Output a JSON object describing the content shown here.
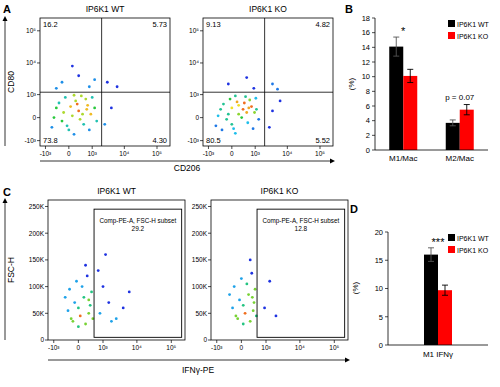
{
  "chart_data": [
    {
      "type": "scatter",
      "panel": "A",
      "x_label": "CD206",
      "y_label": "CD80",
      "xlim": [
        -1500,
        250000
      ],
      "ylim": [
        -1500,
        250000
      ],
      "xticks": [
        {
          "value": -1000,
          "label": "-10³"
        },
        0,
        {
          "value": 1000,
          "label": "10³"
        },
        {
          "value": 10000,
          "label": "10⁴"
        },
        {
          "value": 100000,
          "label": "10⁵"
        }
      ],
      "yticks": [
        {
          "value": -1000,
          "label": "-10³"
        },
        0,
        {
          "value": 1000,
          "label": "10³"
        },
        {
          "value": 10000,
          "label": "10⁴"
        },
        {
          "value": 100000,
          "label": "10⁵"
        }
      ],
      "quadrant_x": 2000,
      "quadrant_y": 1200,
      "plots": [
        {
          "title": "IP6K1 WT",
          "x": [
            -200,
            100,
            300,
            -400,
            500,
            200,
            700,
            -100,
            900,
            0,
            400,
            -600,
            1200,
            600,
            150,
            -300,
            800,
            1000,
            50,
            -500,
            350,
            250,
            -150,
            450,
            1400,
            -50,
            650,
            150,
            -200,
            300,
            800,
            100,
            -400,
            1200,
            3000,
            6000,
            4000,
            2500
          ],
          "y": [
            -100,
            50,
            200,
            300,
            -200,
            600,
            400,
            800,
            100,
            -400,
            900,
            -300,
            300,
            700,
            -600,
            500,
            -400,
            800,
            350,
            0,
            -50,
            450,
            150,
            100,
            -100,
            -250,
            250,
            950,
            2500,
            4000,
            1800,
            8000,
            1600,
            3000,
            2500,
            1800,
            300,
            -200
          ],
          "quadrants": {
            "values": [
              16.2,
              5.73,
              73.8,
              4.3
            ],
            "value_labels": [
              "16.2",
              "5.73",
              "73.8",
              "4.30"
            ]
          }
        },
        {
          "title": "IP6K1 KO",
          "x": [
            -150,
            200,
            350,
            -350,
            550,
            150,
            750,
            -50,
            950,
            50,
            450,
            -550,
            1100,
            650,
            100,
            -250,
            850,
            1050,
            0,
            -450,
            300,
            200,
            -100,
            500,
            1300,
            0,
            600,
            100,
            400,
            -300,
            -100,
            500,
            900,
            3500,
            5000,
            3500,
            2800,
            6000
          ],
          "y": [
            -50,
            100,
            250,
            250,
            -150,
            550,
            350,
            700,
            150,
            -350,
            850,
            -250,
            250,
            650,
            -550,
            450,
            -350,
            750,
            300,
            50,
            0,
            400,
            100,
            150,
            -50,
            -200,
            300,
            900,
            500,
            -400,
            2200,
            3500,
            1600,
            2200,
            1500,
            200,
            -300,
            600
          ],
          "quadrants": {
            "values": [
              9.13,
              4.82,
              80.5,
              5.52
            ],
            "value_labels": [
              "9.13",
              "4.82",
              "80.5",
              "5.52"
            ]
          }
        }
      ]
    },
    {
      "type": "bar",
      "panel": "B",
      "y_label": "(%)",
      "categories": [
        "M1/Mac",
        "M2/Mac"
      ],
      "ylim": [
        0,
        18
      ],
      "yticks": [
        0,
        2,
        4,
        6,
        8,
        10,
        12,
        14,
        16,
        18
      ],
      "legend": "upper right",
      "series": [
        {
          "name": "IP6K1 WT",
          "color": "#000000",
          "values": [
            14.1,
            3.7
          ],
          "errors": [
            1.3,
            0.4
          ]
        },
        {
          "name": "IP6K1 KO",
          "color": "#ff0000",
          "values": [
            10.1,
            5.5
          ],
          "errors": [
            0.9,
            0.7
          ]
        }
      ],
      "annotations": [
        {
          "text": "*",
          "category": "M1/Mac"
        },
        {
          "text": "p = 0.07",
          "category": "M2/Mac"
        }
      ]
    },
    {
      "type": "scatter",
      "panel": "C",
      "x_label": "IFNγ-PE",
      "y_label": "FSC-H",
      "xlim": [
        -1500,
        250000
      ],
      "ylim": [
        0,
        262144
      ],
      "xticks": [
        {
          "value": -1000,
          "label": "-10³"
        },
        0,
        {
          "value": 1000,
          "label": "10³"
        },
        {
          "value": 10000,
          "label": "10⁴"
        },
        {
          "value": 100000,
          "label": "10⁵"
        }
      ],
      "yticks": [
        0,
        {
          "value": 50000,
          "label": "50K"
        },
        {
          "value": 100000,
          "label": "100K"
        },
        {
          "value": 150000,
          "label": "150K"
        },
        {
          "value": 200000,
          "label": "200K"
        },
        {
          "value": 250000,
          "label": "250K"
        }
      ],
      "plots": [
        {
          "title": "IP6K1 WT",
          "x": [
            -200,
            0,
            200,
            -400,
            300,
            100,
            -100,
            400,
            -300,
            250,
            50,
            -150,
            350,
            150,
            -50,
            450,
            -250,
            200,
            0,
            300,
            800,
            1500,
            2500,
            1000,
            4000,
            700,
            1800,
            6000,
            1200
          ],
          "y": [
            40000,
            60000,
            30000,
            80000,
            50000,
            100000,
            70000,
            90000,
            55000,
            120000,
            45000,
            35000,
            65000,
            80000,
            110000,
            40000,
            95000,
            140000,
            25000,
            75000,
            50000,
            70000,
            40000,
            100000,
            60000,
            130000,
            35000,
            90000,
            160000
          ],
          "gate": {
            "label": "Comp-PE-A, FSC-H subset",
            "value": 29.2,
            "x": [
              500,
              200000
            ],
            "y": [
              5000,
              245000
            ]
          }
        },
        {
          "title": "IP6K1 KO",
          "x": [
            -150,
            50,
            250,
            -350,
            350,
            150,
            -50,
            420,
            -250,
            300,
            100,
            -100,
            380,
            200,
            0,
            470,
            -200,
            250,
            50,
            320,
            900,
            2000,
            1300
          ],
          "y": [
            45000,
            65000,
            35000,
            85000,
            55000,
            105000,
            75000,
            95000,
            60000,
            125000,
            50000,
            40000,
            70000,
            85000,
            115000,
            45000,
            100000,
            150000,
            30000,
            80000,
            60000,
            45000,
            110000
          ],
          "gate": {
            "label": "Comp-PE-A, FSC-H subset",
            "value": 12.8,
            "x": [
              500,
              200000
            ],
            "y": [
              5000,
              245000
            ]
          }
        }
      ]
    },
    {
      "type": "bar",
      "panel": "D",
      "y_label": "(%)",
      "categories": [
        "M1 IFNγ"
      ],
      "ylim": [
        0,
        20
      ],
      "yticks": [
        0,
        5,
        10,
        15,
        20
      ],
      "legend": "upper right",
      "series": [
        {
          "name": "IP6K1 WT",
          "color": "#000000",
          "values": [
            16.0
          ],
          "errors": [
            1.2
          ]
        },
        {
          "name": "IP6K1 KO",
          "color": "#ff0000",
          "values": [
            9.7
          ],
          "errors": [
            0.9
          ]
        }
      ],
      "annotations": [
        {
          "text": "***",
          "category": "M1 IFNγ"
        }
      ]
    }
  ]
}
